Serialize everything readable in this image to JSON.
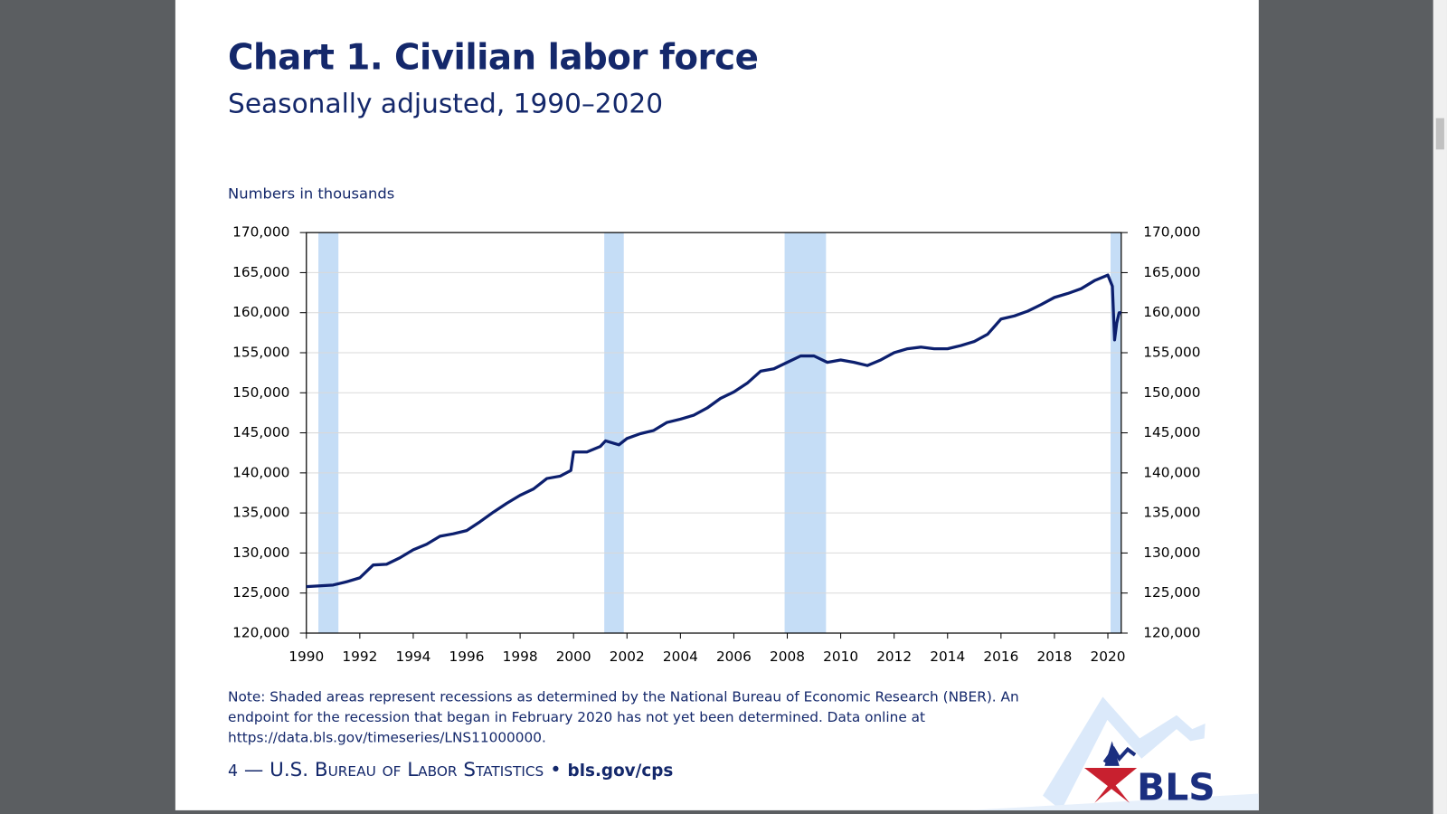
{
  "chart_data": {
    "type": "line",
    "title": "Chart 1. Civilian labor force",
    "subtitle": "Seasonally adjusted, 1990–2020",
    "y_label": "Numbers in thousands",
    "note": "Note: Shaded areas represent recessions as determined by the National Bureau of Economic Research (NBER). An endpoint for the recession that began in February 2020 has not yet been determined. Data online at https://data.bls.gov/timeseries/LNS11000000.",
    "x": [
      1990,
      1990.5,
      1991,
      1991.5,
      1992,
      1992.5,
      1993,
      1993.5,
      1994,
      1994.5,
      1995,
      1995.5,
      1996,
      1996.5,
      1997,
      1997.5,
      1998,
      1998.5,
      1999,
      1999.5,
      1999.9,
      2000,
      2000.5,
      2001,
      2001.2,
      2001.7,
      2002,
      2002.5,
      2003,
      2003.5,
      2004,
      2004.5,
      2005,
      2005.5,
      2006,
      2006.5,
      2007,
      2007.5,
      2008,
      2008.5,
      2009,
      2009.5,
      2010,
      2010.5,
      2011,
      2011.5,
      2012,
      2012.5,
      2013,
      2013.5,
      2014,
      2014.5,
      2015,
      2015.5,
      2016,
      2016.5,
      2017,
      2017.5,
      2018,
      2018.5,
      2019,
      2019.5,
      2020,
      2020.17,
      2020.25,
      2020.33,
      2020.42,
      2020.5
    ],
    "series": [
      {
        "name": "Civilian labor force",
        "color": "#0c1f6e",
        "values": [
          125800,
          125900,
          126000,
          126400,
          126900,
          128500,
          128600,
          129400,
          130400,
          131100,
          132100,
          132400,
          132800,
          133900,
          135100,
          136200,
          137200,
          138000,
          139300,
          139600,
          140300,
          142600,
          142600,
          143300,
          144000,
          143500,
          144300,
          144900,
          145300,
          146300,
          146700,
          147200,
          148100,
          149300,
          150100,
          151200,
          152700,
          153000,
          153800,
          154600,
          154600,
          153800,
          154100,
          153800,
          153400,
          154100,
          155000,
          155500,
          155700,
          155500,
          155500,
          155900,
          156400,
          157300,
          159200,
          159600,
          160200,
          161000,
          161900,
          162400,
          163000,
          164000,
          164700,
          163300,
          156600,
          158700,
          160000,
          160000
        ]
      }
    ],
    "recessions": [
      [
        1990.45,
        1991.2
      ],
      [
        2001.15,
        2001.88
      ],
      [
        2007.9,
        2009.45
      ],
      [
        2020.1,
        2020.5
      ]
    ],
    "recession_color": "#c5ddf6",
    "xlim": [
      1990,
      2020.5
    ],
    "xticks": [
      1990,
      1992,
      1994,
      1996,
      1998,
      2000,
      2002,
      2004,
      2006,
      2008,
      2010,
      2012,
      2014,
      2016,
      2018,
      2020
    ],
    "ylim": [
      120000,
      170000
    ],
    "yticks": [
      {
        "value": 120000,
        "label": "120,000"
      },
      {
        "value": 125000,
        "label": "125,000"
      },
      {
        "value": 130000,
        "label": "130,000"
      },
      {
        "value": 135000,
        "label": "135,000"
      },
      {
        "value": 140000,
        "label": "140,000"
      },
      {
        "value": 145000,
        "label": "145,000"
      },
      {
        "value": 150000,
        "label": "150,000"
      },
      {
        "value": 155000,
        "label": "155,000"
      },
      {
        "value": 160000,
        "label": "160,000"
      },
      {
        "value": 165000,
        "label": "165,000"
      },
      {
        "value": 170000,
        "label": "170,000"
      }
    ],
    "grid": true
  },
  "footer": {
    "page": "4",
    "dash": "—",
    "org": "U.S. Bureau of Labor Statistics",
    "bullet": "•",
    "site": "bls.gov/cps",
    "logo": "BLS"
  }
}
